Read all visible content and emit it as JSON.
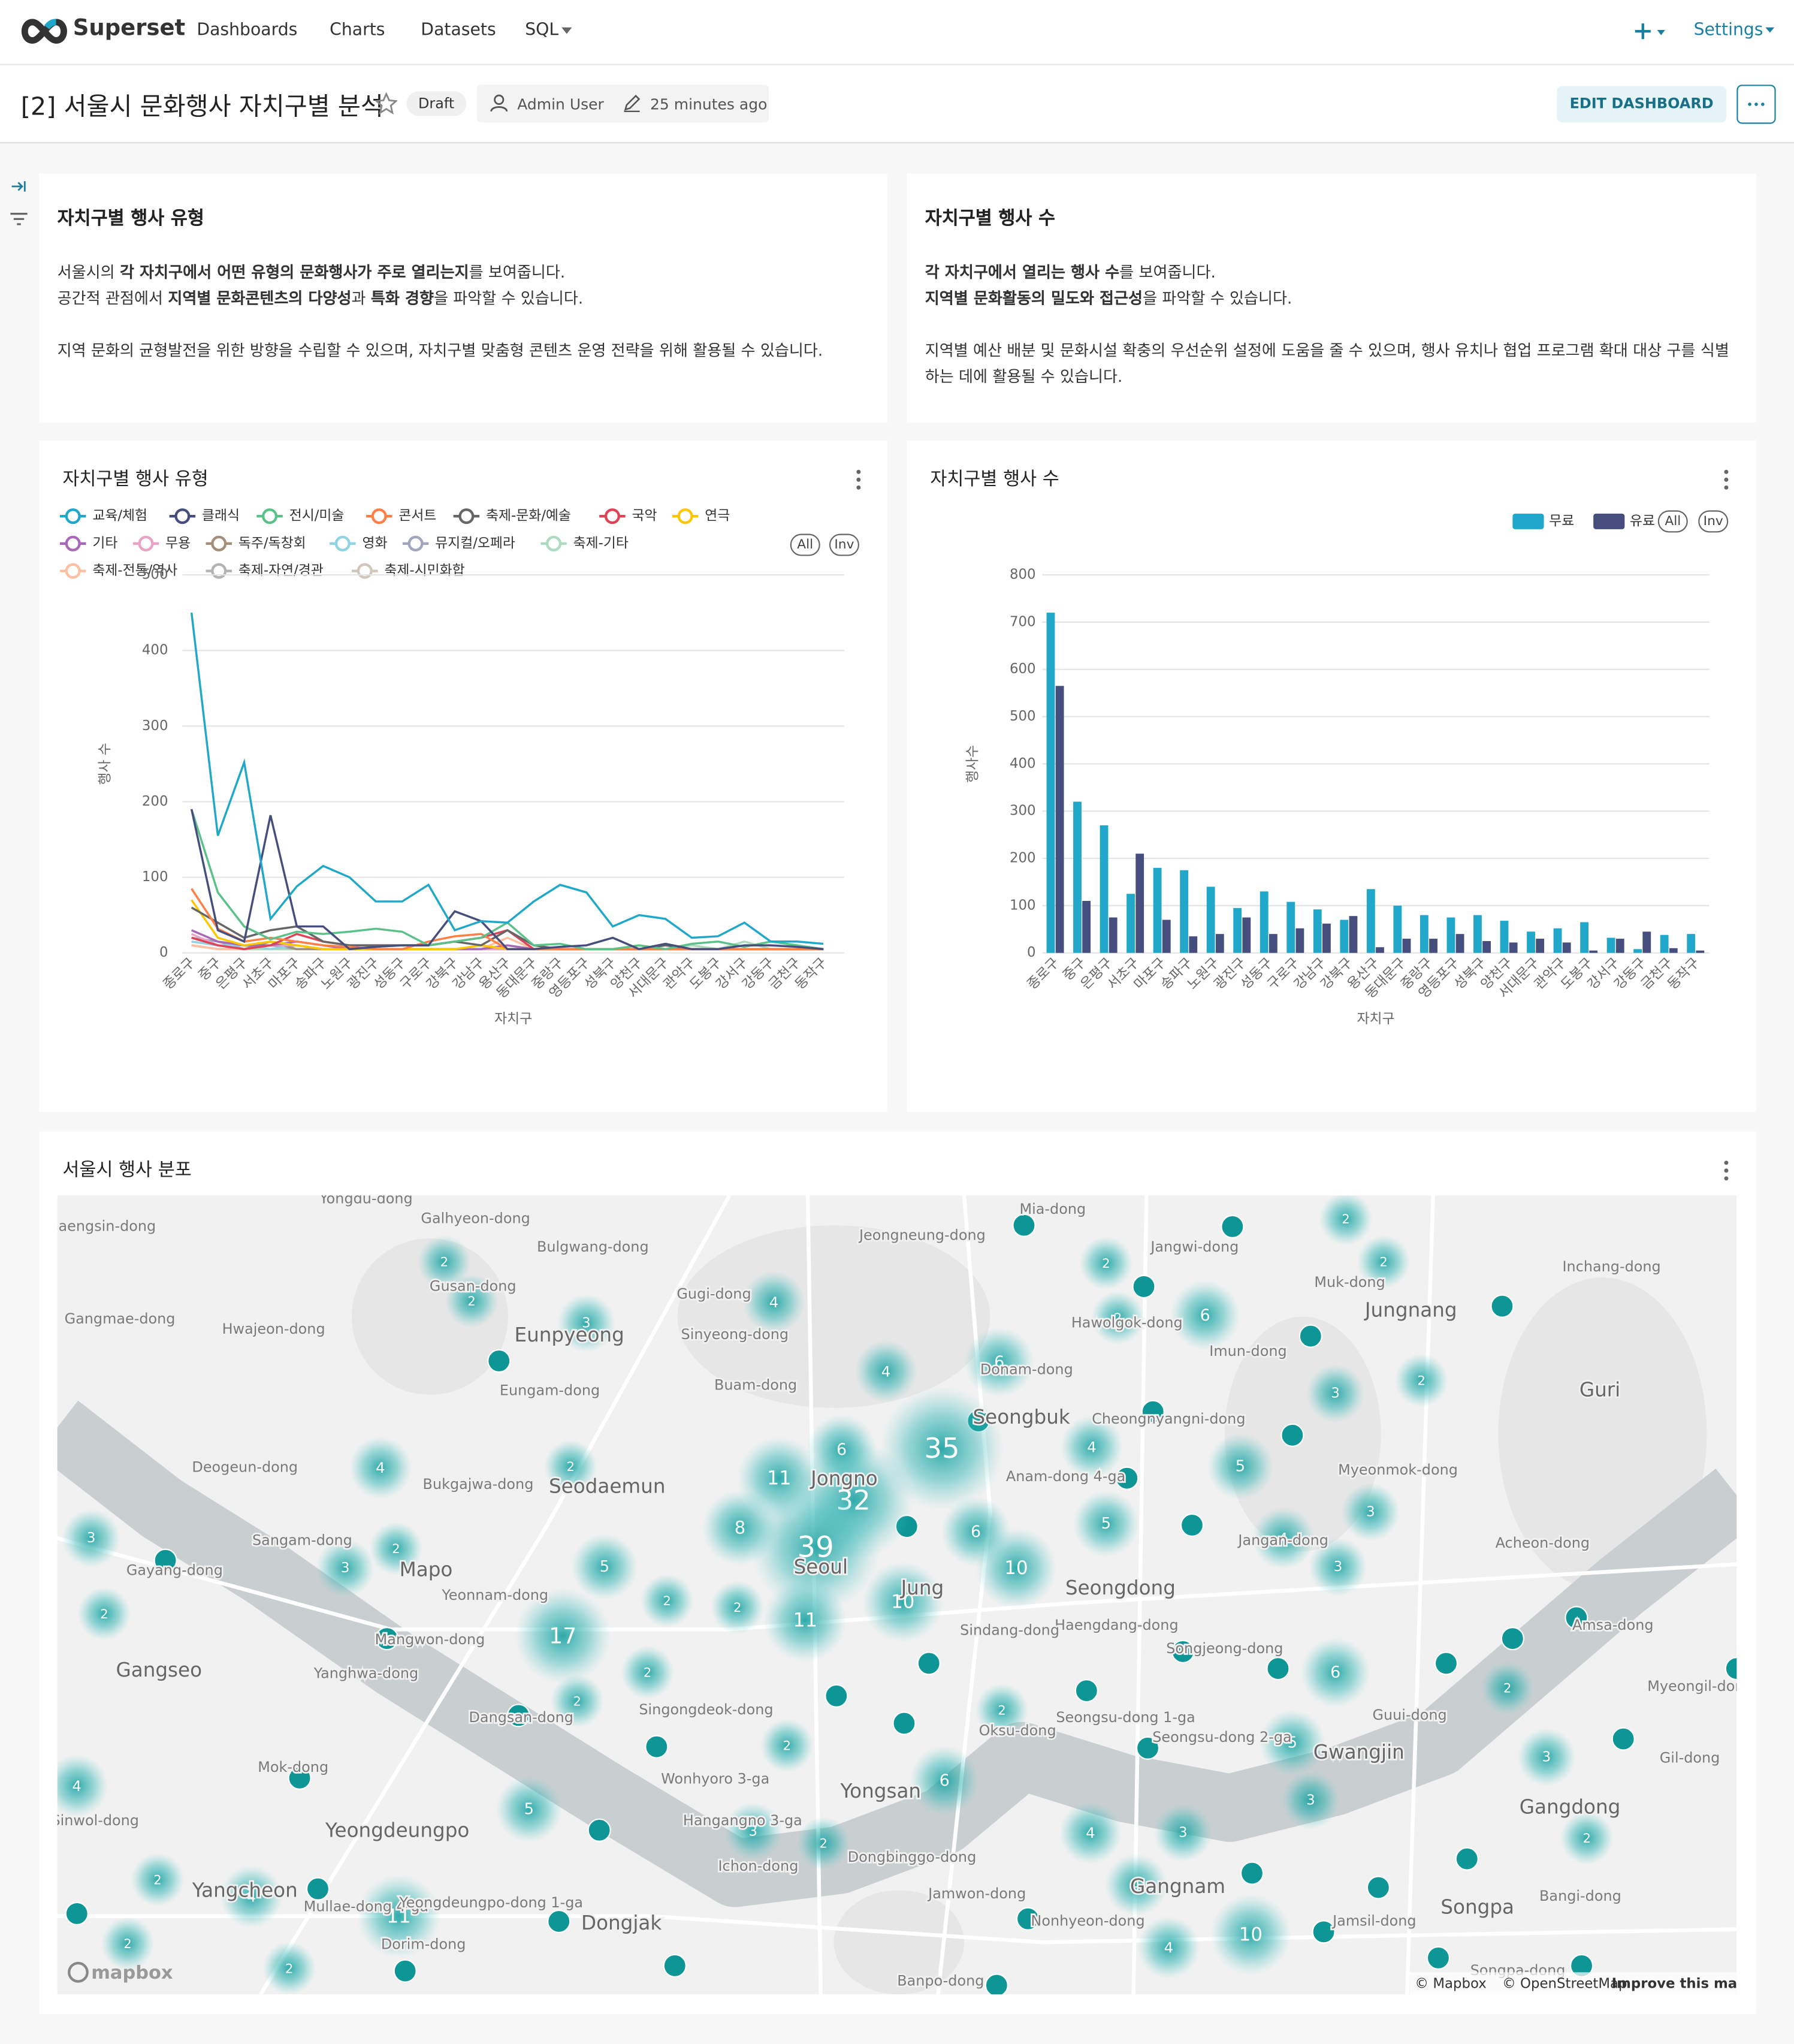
{
  "nav": {
    "brand": "Superset",
    "items": [
      "Dashboards",
      "Charts",
      "Datasets",
      "SQL"
    ],
    "settings": "Settings"
  },
  "header": {
    "title": "[2] 서울시 문화행사 자치구별 분석",
    "status": "Draft",
    "owner": "Admin User",
    "modified": "25 minutes ago",
    "edit": "EDIT DASHBOARD"
  },
  "text_cards": [
    {
      "title": "자치구별 행사 유형",
      "paragraphs": [
        [
          [
            {
              "t": "서울시의 "
            },
            {
              "t": "각 자치구에서 어떤 유형의 문화행사가 주로 열리는지",
              "b": true
            },
            {
              "t": "를 보여줍니다."
            }
          ],
          [
            {
              "t": "공간적 관점에서 "
            },
            {
              "t": "지역별 문화콘텐츠의 다양성",
              "b": true
            },
            {
              "t": "과 "
            },
            {
              "t": "특화 경향",
              "b": true
            },
            {
              "t": "을 파악할 수 있습니다."
            }
          ]
        ],
        [
          [
            {
              "t": "지역 문화의 균형발전을 위한 방향을 수립할 수 있으며, 자치구별 맞춤형 콘텐츠 운영 전략을 위해 활용될 수 있습니다."
            }
          ]
        ]
      ]
    },
    {
      "title": "자치구별 행사 수",
      "paragraphs": [
        [
          [
            {
              "t": "각 자치구에서 열리는 행사 수",
              "b": true
            },
            {
              "t": "를 보여줍니다."
            }
          ],
          [
            {
              "t": "지역별 문화활동의 밀도와 접근성",
              "b": true
            },
            {
              "t": "을 파악할 수 있습니다."
            }
          ]
        ],
        [
          [
            {
              "t": "지역별 예산 배분 및 문화시설 확충의 우선순위 설정에 도움을 줄 수 있으며, 행사 유치나 협업 프로그램 확대 대상 구를 식별하는 데에 활용될 수 있습니다."
            }
          ]
        ]
      ]
    }
  ],
  "chart_data": [
    {
      "type": "line",
      "title": "자치구별 행사 유형",
      "x_label": "자치구",
      "y_label": "행사 수",
      "legend_controls": [
        "All",
        "Inv"
      ],
      "grid": true,
      "categories": [
        "종로구",
        "중구",
        "은평구",
        "서초구",
        "마포구",
        "송파구",
        "노원구",
        "광진구",
        "성동구",
        "구로구",
        "강북구",
        "강남구",
        "용산구",
        "동대문구",
        "중랑구",
        "영등포구",
        "성북구",
        "양천구",
        "서대문구",
        "관악구",
        "도봉구",
        "강서구",
        "강동구",
        "금천구",
        "동작구"
      ],
      "ylim": [
        0,
        500
      ],
      "yticks": [
        0,
        100,
        200,
        300,
        400,
        500
      ],
      "series": [
        {
          "name": "교육/체험",
          "color": "#1fa8c9",
          "values": [
            450,
            155,
            252,
            45,
            88,
            115,
            100,
            68,
            68,
            90,
            30,
            42,
            40,
            68,
            90,
            80,
            35,
            50,
            45,
            20,
            22,
            40,
            15,
            15,
            12
          ]
        },
        {
          "name": "클래식",
          "color": "#454e7c",
          "values": [
            190,
            30,
            15,
            182,
            35,
            35,
            5,
            8,
            10,
            10,
            55,
            42,
            5,
            5,
            8,
            10,
            20,
            5,
            12,
            5,
            5,
            10,
            10,
            8,
            5
          ]
        },
        {
          "name": "전시/미술",
          "color": "#5ac189",
          "values": [
            190,
            80,
            35,
            18,
            28,
            25,
            28,
            32,
            28,
            10,
            15,
            20,
            40,
            10,
            12,
            5,
            5,
            10,
            5,
            12,
            15,
            8,
            15,
            10,
            5
          ]
        },
        {
          "name": "콘서트",
          "color": "#ff7f44",
          "values": [
            85,
            32,
            15,
            20,
            15,
            10,
            8,
            5,
            5,
            15,
            22,
            25,
            5,
            5,
            5,
            5,
            5,
            5,
            5,
            5,
            5,
            5,
            5,
            5,
            5
          ]
        },
        {
          "name": "축제-문화/예술",
          "color": "#666666",
          "values": [
            60,
            40,
            20,
            30,
            35,
            15,
            10,
            10,
            10,
            10,
            15,
            10,
            30,
            10,
            5,
            5,
            5,
            5,
            10,
            5,
            5,
            5,
            5,
            5,
            5
          ]
        },
        {
          "name": "국악",
          "color": "#e04355",
          "values": [
            20,
            10,
            5,
            10,
            25,
            15,
            10,
            10,
            10,
            10,
            15,
            20,
            30,
            5,
            5,
            5,
            5,
            5,
            5,
            5,
            5,
            5,
            5,
            5,
            5
          ]
        },
        {
          "name": "연극",
          "color": "#fcc700",
          "values": [
            70,
            20,
            10,
            15,
            10,
            5,
            5,
            5,
            5,
            5,
            5,
            10,
            5,
            5,
            5,
            5,
            5,
            10,
            5,
            5,
            5,
            5,
            5,
            5,
            5
          ]
        },
        {
          "name": "기타",
          "color": "#a868b7",
          "values": [
            30,
            15,
            10,
            10,
            15,
            10,
            5,
            5,
            5,
            5,
            5,
            5,
            10,
            5,
            5,
            5,
            5,
            5,
            5,
            5,
            5,
            5,
            5,
            5,
            5
          ]
        },
        {
          "name": "무용",
          "color": "#e9a3c4",
          "values": [
            25,
            10,
            5,
            10,
            10,
            5,
            5,
            5,
            5,
            5,
            5,
            5,
            5,
            5,
            5,
            5,
            5,
            5,
            5,
            5,
            5,
            5,
            5,
            5,
            5
          ]
        },
        {
          "name": "독주/독창회",
          "color": "#a38f79",
          "values": [
            20,
            10,
            5,
            15,
            5,
            5,
            5,
            5,
            5,
            5,
            5,
            5,
            5,
            5,
            5,
            5,
            5,
            5,
            5,
            5,
            5,
            5,
            5,
            5,
            5
          ]
        },
        {
          "name": "영화",
          "color": "#8fd3e4",
          "values": [
            15,
            10,
            10,
            5,
            10,
            5,
            5,
            5,
            5,
            5,
            5,
            5,
            5,
            5,
            5,
            5,
            5,
            5,
            10,
            5,
            5,
            5,
            5,
            5,
            5
          ]
        },
        {
          "name": "뮤지컬/오페라",
          "color": "#a1a6bd",
          "values": [
            20,
            15,
            5,
            10,
            5,
            5,
            5,
            5,
            5,
            5,
            5,
            5,
            5,
            5,
            5,
            5,
            5,
            5,
            5,
            5,
            5,
            5,
            5,
            5,
            5
          ]
        },
        {
          "name": "축제-기타",
          "color": "#acdbc0",
          "values": [
            15,
            10,
            5,
            5,
            5,
            5,
            5,
            5,
            5,
            5,
            5,
            5,
            10,
            5,
            5,
            5,
            5,
            5,
            5,
            10,
            5,
            15,
            5,
            5,
            5
          ]
        },
        {
          "name": "축제-전통/역사",
          "color": "#ffbfa1",
          "values": [
            10,
            5,
            5,
            5,
            5,
            5,
            5,
            5,
            5,
            5,
            5,
            5,
            20,
            5,
            5,
            5,
            5,
            5,
            5,
            5,
            5,
            5,
            5,
            5,
            5
          ]
        },
        {
          "name": "축제-자연/경관",
          "color": "#b3b3b3",
          "values": [
            10,
            5,
            5,
            5,
            5,
            5,
            5,
            5,
            5,
            5,
            5,
            5,
            5,
            5,
            5,
            5,
            5,
            5,
            5,
            5,
            5,
            5,
            5,
            5,
            5
          ]
        },
        {
          "name": "축제-시민화합",
          "color": "#d1c6bc",
          "values": [
            10,
            5,
            5,
            5,
            5,
            5,
            5,
            5,
            5,
            5,
            5,
            5,
            5,
            5,
            5,
            5,
            5,
            5,
            5,
            5,
            5,
            5,
            5,
            5,
            5
          ]
        }
      ]
    },
    {
      "type": "bar",
      "title": "자치구별 행사 수",
      "x_label": "자치구",
      "y_label": "행사수",
      "legend_controls": [
        "All",
        "Inv"
      ],
      "grid": true,
      "categories": [
        "종로구",
        "중구",
        "은평구",
        "서초구",
        "마포구",
        "송파구",
        "노원구",
        "광진구",
        "성동구",
        "구로구",
        "강남구",
        "강북구",
        "용산구",
        "동대문구",
        "중랑구",
        "영등포구",
        "성북구",
        "양천구",
        "서대문구",
        "관악구",
        "도봉구",
        "강서구",
        "강동구",
        "금천구",
        "동작구"
      ],
      "ylim": [
        0,
        800
      ],
      "yticks": [
        0,
        100,
        200,
        300,
        400,
        500,
        600,
        700,
        800
      ],
      "series": [
        {
          "name": "무료",
          "color": "#20a7c9",
          "values": [
            720,
            320,
            270,
            125,
            180,
            175,
            140,
            95,
            130,
            108,
            92,
            70,
            135,
            100,
            80,
            75,
            80,
            68,
            45,
            52,
            65,
            32,
            8,
            38,
            40
          ]
        },
        {
          "name": "유료",
          "color": "#454e7c",
          "values": [
            565,
            110,
            75,
            210,
            70,
            35,
            40,
            75,
            40,
            52,
            62,
            78,
            12,
            30,
            30,
            40,
            25,
            22,
            30,
            22,
            5,
            30,
            45,
            10,
            5
          ]
        }
      ]
    }
  ],
  "map": {
    "title": "서울시 행사 분포",
    "logo": "mapbox",
    "attribution": [
      "© Mapbox",
      "© OpenStreetMap",
      "Improve this map"
    ],
    "places": [
      "Yongdu-dong",
      "Gaengsin-dong",
      "Galhyeon-dong",
      "Bulgwang-dong",
      "Jeongneung-dong",
      "Mia-dong",
      "Jangwi-dong",
      "Gusan-dong",
      "Gugi-dong",
      "Muk-dong",
      "Inchang-dong",
      "Gangmae-dong",
      "Hwajeon-dong",
      "Eunpyeong",
      "Sinyeong-dong",
      "Hawolgok-dong",
      "Jungnang",
      "Imun-dong",
      "Buam-dong",
      "Eungam-dong",
      "Donam-dong",
      "Guri",
      "Seongbuk",
      "Cheongnyangni-dong",
      "Deogeun-dong",
      "Bukgajwa-dong",
      "Seodaemun",
      "Jongno",
      "Anam-dong 4-ga",
      "Myeonmok-dong",
      "Sangam-dong",
      "Mapo",
      "Seoul",
      "Jangan-dong",
      "Acheon-dong",
      "Gayang-dong",
      "Yeonnam-dong",
      "Jung",
      "Seongdong",
      "Haengdang-dong",
      "Sindang-dong",
      "Mangwon-dong",
      "Songjeong-dong",
      "Gangseo",
      "Yanghwa-dong",
      "Dangsan-dong",
      "Singongdeok-dong",
      "Seongsu-dong 1-ga",
      "Seongsu-dong 2-ga",
      "Guui-dong",
      "Oksu-dong",
      "Gwangjin",
      "Mok-dong",
      "Wonhyoro 3-ga",
      "Yongsan",
      "Gangdong",
      "Sinwol-dong",
      "Yeongdeungpo",
      "Hangangno 3-ga",
      "Dongbinggo-dong",
      "Ichon-dong",
      "Yangcheon",
      "Mullae-dong 4-ga",
      "Yeongdeungpo-dong 1-ga",
      "Jamwon-dong",
      "Gangnam",
      "Jamsil-dong",
      "Songpa",
      "Dongjak",
      "Nonhyeon-dong",
      "Dorim-dong",
      "Bangi-dong",
      "Gil-dong",
      "Myeongil-dong",
      "Amsa-dong",
      "Songpa-dong",
      "Banpo-dong"
    ],
    "clusters": [
      35,
      32,
      39,
      11,
      6,
      8,
      17,
      10,
      10,
      11,
      6,
      6,
      10,
      11,
      6,
      6,
      6,
      5,
      5,
      5,
      5,
      5,
      4,
      4,
      4,
      4,
      4,
      4,
      4,
      4,
      4,
      4,
      3,
      3,
      3,
      3,
      3,
      3,
      3,
      3,
      3,
      3,
      2,
      2,
      2,
      2,
      2,
      2,
      2,
      2,
      2,
      2,
      2,
      2,
      2,
      2,
      2,
      2,
      2,
      2,
      2,
      2,
      2,
      2
    ]
  }
}
